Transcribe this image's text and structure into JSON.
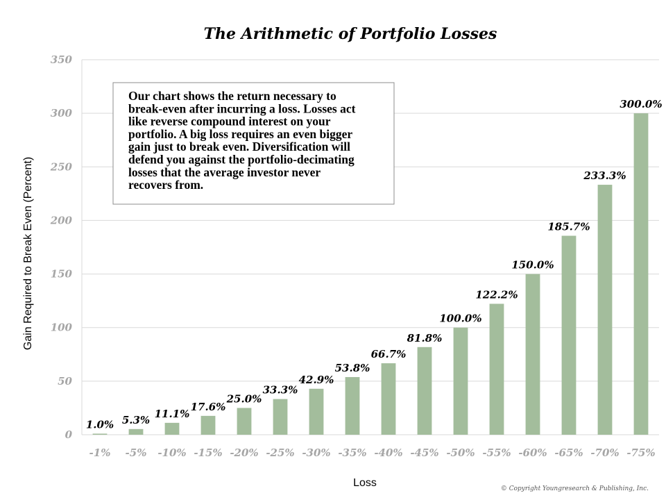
{
  "chart_data": {
    "type": "bar",
    "title": "The Arithmetic of Portfolio Losses",
    "xlabel": "Loss",
    "ylabel": "Gain Required to Break Even (Percent)",
    "ylim": [
      0,
      350
    ],
    "yticks": [
      0,
      50,
      100,
      150,
      200,
      250,
      300,
      350
    ],
    "grid": true,
    "categories": [
      "-1%",
      "-5%",
      "-10%",
      "-15%",
      "-20%",
      "-25%",
      "-30%",
      "-35%",
      "-40%",
      "-45%",
      "-50%",
      "-55%",
      "-60%",
      "-65%",
      "-70%",
      "-75%"
    ],
    "values": [
      1.0,
      5.3,
      11.1,
      17.6,
      25.0,
      33.3,
      42.9,
      53.8,
      66.7,
      81.8,
      100.0,
      122.2,
      150.0,
      185.7,
      233.3,
      300.0
    ],
    "data_labels": [
      "1.0%",
      "5.3%",
      "11.1%",
      "17.6%",
      "25.0%",
      "33.3%",
      "42.9%",
      "53.8%",
      "66.7%",
      "81.8%",
      "100.0%",
      "122.2%",
      "150.0%",
      "185.7%",
      "233.3%",
      "300.0%"
    ],
    "bar_color": "#a3bd9c",
    "annotation_lines": [
      "Our chart shows the return necessary to",
      "break-even after incurring a loss. Losses act",
      "like reverse compound interest on your",
      "portfolio. A big loss requires an even bigger",
      "gain just to break even. Diversification will",
      "defend you against the portfolio-decimating",
      "losses that the average investor never",
      "recovers from."
    ],
    "copyright": "© Copyright Youngresearch & Publishing, Inc."
  }
}
